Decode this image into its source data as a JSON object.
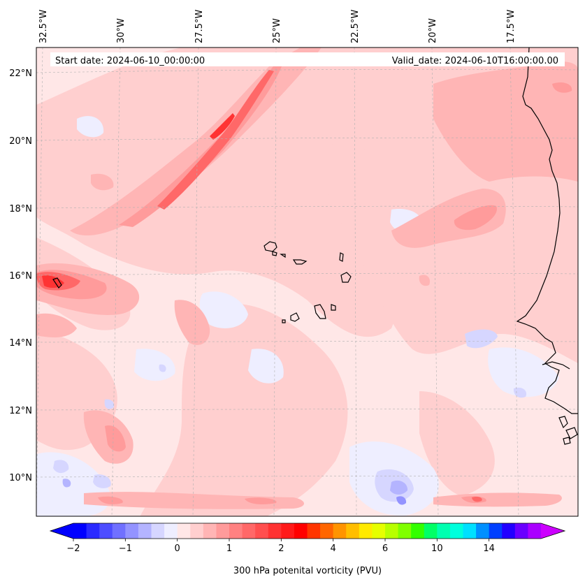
{
  "header": {
    "start_date": "Start date: 2024-06-10_00:00:00",
    "valid_date": "Valid_date: 2024-06-10T16:00:00.00"
  },
  "axes": {
    "lon_labels": [
      "32.5°W",
      "30°W",
      "27.5°W",
      "25°W",
      "22.5°W",
      "20°W",
      "17.5°W"
    ],
    "lat_labels": [
      "22°N",
      "20°N",
      "18°N",
      "16°N",
      "14°N",
      "12°N",
      "10°N"
    ]
  },
  "colorbar": {
    "label": "300 hPa potenital vorticity (PVU)",
    "tick_labels": [
      "−2",
      "−1",
      "0",
      "1",
      "2",
      "4",
      "6",
      "10",
      "14"
    ],
    "colors": [
      "#0000ff",
      "#2a2aff",
      "#4d4dff",
      "#7070ff",
      "#9393ff",
      "#b4b4ff",
      "#d6d6ff",
      "#eeeeff",
      "#ffe7e7",
      "#ffcfcf",
      "#ffb5b5",
      "#ff9b9b",
      "#ff8181",
      "#ff6868",
      "#ff4f4f",
      "#ff3333",
      "#ff1a1a",
      "#ff0000",
      "#ff3500",
      "#ff6600",
      "#ff9400",
      "#ffbe00",
      "#ffea00",
      "#e6ff00",
      "#b8ff00",
      "#80ff00",
      "#33ff00",
      "#00ff66",
      "#00ffb0",
      "#00ffdd",
      "#00e0ff",
      "#0090ff",
      "#0040ff",
      "#2200ff",
      "#6a00ff",
      "#aa00ff"
    ],
    "under_color": "#0000ff",
    "over_color": "#cc00ff"
  },
  "colors": {
    "background": "#ffe7e7",
    "light_pink": "#ffcfcf",
    "mid_pink": "#ffb5b5",
    "pink": "#ff9b9b",
    "red": "#ff6868",
    "strong_red": "#ff3333",
    "pale_blue": "#eeeeff",
    "light_blue": "#d6d6ff",
    "blue": "#b4b4ff",
    "mid_blue": "#9393ff",
    "coast": "#000000"
  }
}
